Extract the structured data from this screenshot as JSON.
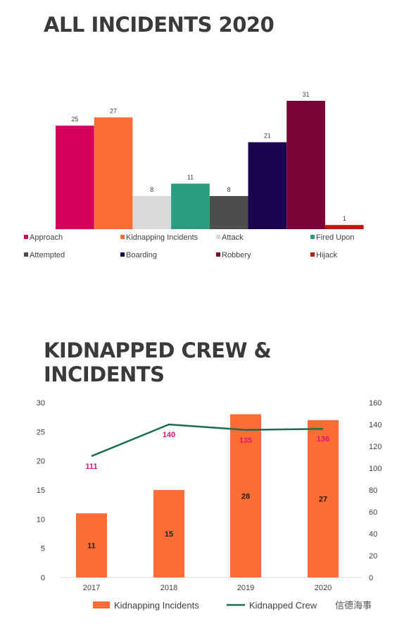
{
  "title1": "ALL INCIDENTS 2020",
  "title2": "KIDNAPPED CREW & INCIDENTS",
  "watermark": "信德海事",
  "chart_data": [
    {
      "type": "bar",
      "title": "ALL INCIDENTS 2020",
      "categories": [
        "Approach",
        "Kidnapping Incidents",
        "Attack",
        "Fired Upon",
        "Attempted",
        "Boarding",
        "Robbery",
        "Hijack"
      ],
      "values": [
        25,
        27,
        8,
        11,
        8,
        21,
        31,
        1
      ],
      "colors": [
        "#d6005c",
        "#fb6d33",
        "#d9d9d9",
        "#2a9d80",
        "#4d4d4d",
        "#1c0550",
        "#7b0538",
        "#c7130c"
      ],
      "legend_position": "bottom",
      "grid": false
    },
    {
      "type": "bar",
      "title": "KIDNAPPED CREW & INCIDENTS",
      "categories": [
        "2017",
        "2018",
        "2019",
        "2020"
      ],
      "series": [
        {
          "name": "Kidnapping Incidents",
          "type": "bar",
          "axis": "left",
          "values": [
            11,
            15,
            28,
            27
          ],
          "color": "#fb6d33"
        },
        {
          "name": "Kidnapped Crew",
          "type": "line",
          "axis": "right",
          "values": [
            111,
            140,
            135,
            136
          ],
          "color": "#1e6b55"
        }
      ],
      "y_left": {
        "ylim": [
          0,
          30
        ],
        "ticks": [
          0,
          5,
          10,
          15,
          20,
          25,
          30
        ]
      },
      "y_right": {
        "ylim": [
          0,
          160
        ],
        "ticks": [
          0,
          20,
          40,
          60,
          80,
          100,
          120,
          140,
          160
        ]
      },
      "legend_position": "bottom",
      "grid": false
    }
  ]
}
